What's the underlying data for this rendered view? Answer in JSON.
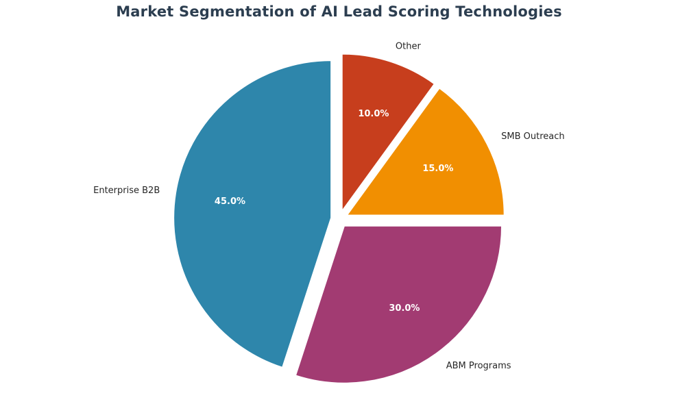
{
  "chart_data": {
    "type": "pie",
    "title": "Market Segmentation of AI Lead Scoring Technologies",
    "categories": [
      "Enterprise B2B",
      "ABM Programs",
      "SMB Outreach",
      "Other"
    ],
    "values": [
      45.0,
      30.0,
      15.0,
      10.0
    ],
    "percent_labels": [
      "45.0%",
      "30.0%",
      "15.0%",
      "10.0%"
    ],
    "colors": [
      "#2e86ab",
      "#a23b72",
      "#f18f01",
      "#c73e1d"
    ],
    "start_angle_deg": 90,
    "direction": "counterclockwise",
    "exploded": true
  }
}
